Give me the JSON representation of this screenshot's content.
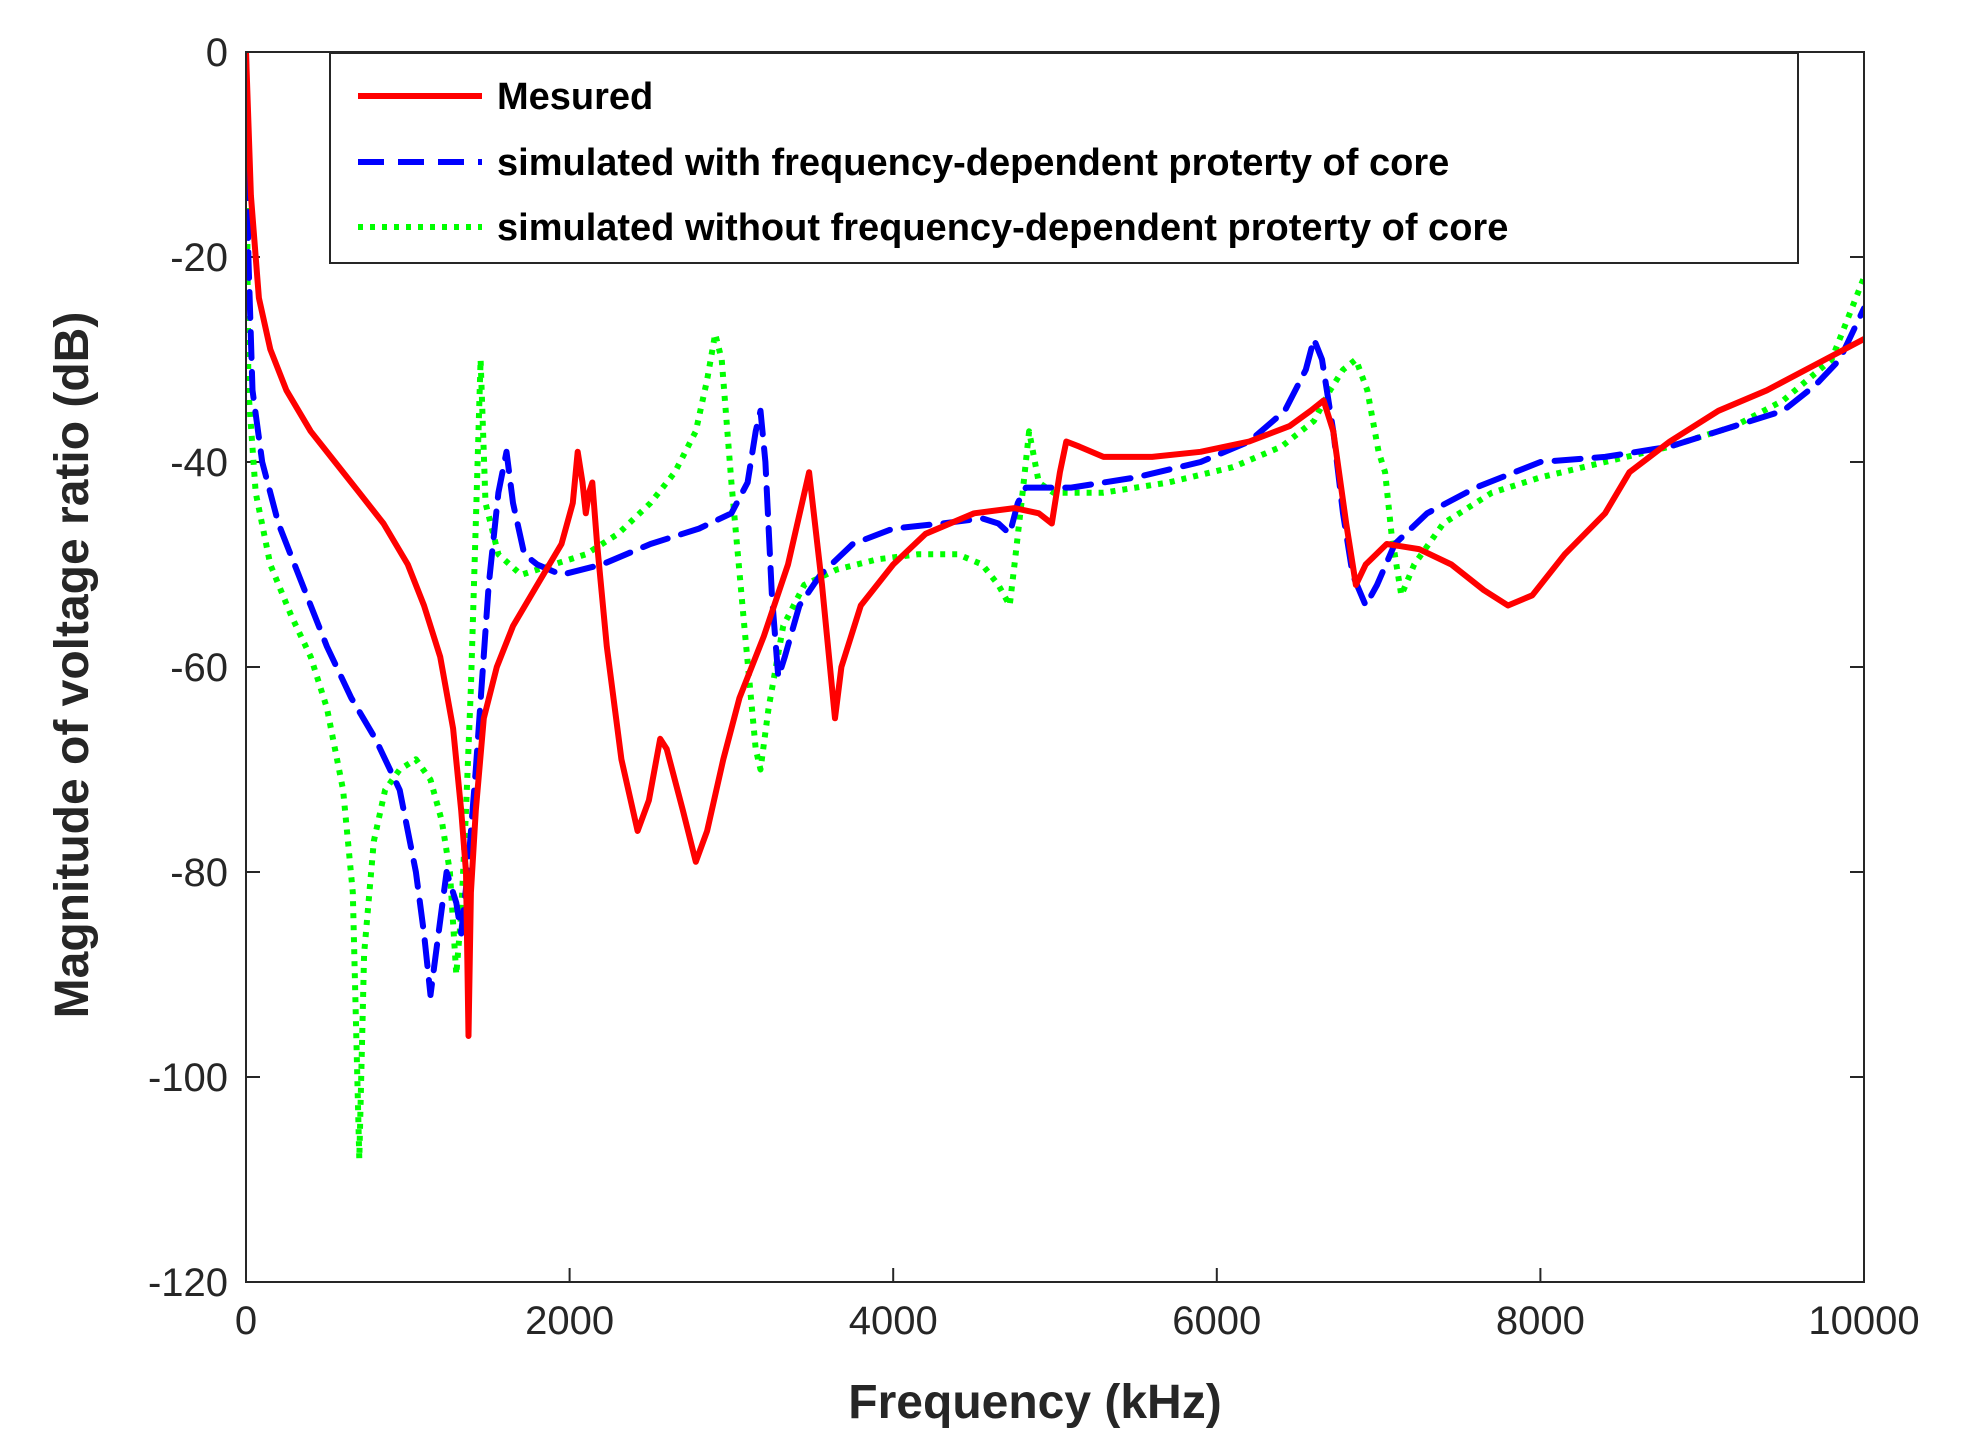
{
  "chart_data": {
    "type": "line",
    "title": "",
    "xlabel": "Frequency (kHz)",
    "ylabel": "Magnitude of voltage ratio (dB)",
    "xlim": [
      0,
      10000
    ],
    "ylim": [
      -120,
      0
    ],
    "xticks": [
      0,
      2000,
      4000,
      6000,
      8000,
      10000
    ],
    "yticks": [
      0,
      -20,
      -40,
      -60,
      -80,
      -100,
      -120
    ],
    "grid": false,
    "legend_position": "top",
    "series": [
      {
        "name": "Mesured",
        "color": "#ff0000",
        "style": "solid",
        "points": [
          [
            0,
            0
          ],
          [
            30,
            -14
          ],
          [
            80,
            -24
          ],
          [
            150,
            -29
          ],
          [
            250,
            -33
          ],
          [
            400,
            -37
          ],
          [
            550,
            -40
          ],
          [
            700,
            -43
          ],
          [
            850,
            -46
          ],
          [
            1000,
            -50
          ],
          [
            1100,
            -54
          ],
          [
            1200,
            -59
          ],
          [
            1280,
            -66
          ],
          [
            1330,
            -74
          ],
          [
            1360,
            -80
          ],
          [
            1375,
            -96
          ],
          [
            1390,
            -82
          ],
          [
            1420,
            -74
          ],
          [
            1470,
            -65
          ],
          [
            1550,
            -60
          ],
          [
            1650,
            -56
          ],
          [
            1800,
            -52
          ],
          [
            1950,
            -48
          ],
          [
            2020,
            -44
          ],
          [
            2050,
            -39
          ],
          [
            2080,
            -42
          ],
          [
            2100,
            -45
          ],
          [
            2120,
            -43
          ],
          [
            2140,
            -42
          ],
          [
            2170,
            -48
          ],
          [
            2230,
            -58
          ],
          [
            2320,
            -69
          ],
          [
            2420,
            -76
          ],
          [
            2490,
            -73
          ],
          [
            2560,
            -67
          ],
          [
            2600,
            -68
          ],
          [
            2700,
            -74
          ],
          [
            2780,
            -79
          ],
          [
            2850,
            -76
          ],
          [
            2950,
            -69
          ],
          [
            3050,
            -63
          ],
          [
            3200,
            -57
          ],
          [
            3350,
            -50
          ],
          [
            3480,
            -41
          ],
          [
            3560,
            -52
          ],
          [
            3640,
            -65
          ],
          [
            3680,
            -60
          ],
          [
            3800,
            -54
          ],
          [
            4000,
            -50
          ],
          [
            4200,
            -47
          ],
          [
            4500,
            -45
          ],
          [
            4750,
            -44.5
          ],
          [
            4900,
            -45
          ],
          [
            4980,
            -46
          ],
          [
            5030,
            -41
          ],
          [
            5070,
            -38
          ],
          [
            5150,
            -38.5
          ],
          [
            5300,
            -39.5
          ],
          [
            5600,
            -39.5
          ],
          [
            5900,
            -39
          ],
          [
            6200,
            -38
          ],
          [
            6450,
            -36.5
          ],
          [
            6580,
            -35
          ],
          [
            6660,
            -34
          ],
          [
            6720,
            -37
          ],
          [
            6800,
            -46
          ],
          [
            6860,
            -52
          ],
          [
            6920,
            -50
          ],
          [
            7050,
            -48
          ],
          [
            7250,
            -48.5
          ],
          [
            7450,
            -50
          ],
          [
            7650,
            -52.5
          ],
          [
            7800,
            -54
          ],
          [
            7950,
            -53
          ],
          [
            8150,
            -49
          ],
          [
            8400,
            -45
          ],
          [
            8550,
            -41
          ],
          [
            8800,
            -38
          ],
          [
            9100,
            -35
          ],
          [
            9400,
            -33
          ],
          [
            9700,
            -30.5
          ],
          [
            10000,
            -28
          ]
        ]
      },
      {
        "name": "simulated with frequency-dependent proterty of core",
        "color": "#0000ff",
        "style": "dashed",
        "points": [
          [
            0,
            0
          ],
          [
            15,
            -20
          ],
          [
            40,
            -33
          ],
          [
            100,
            -40
          ],
          [
            200,
            -46
          ],
          [
            350,
            -52
          ],
          [
            500,
            -58
          ],
          [
            650,
            -63
          ],
          [
            800,
            -67
          ],
          [
            950,
            -72
          ],
          [
            1050,
            -80
          ],
          [
            1100,
            -86
          ],
          [
            1140,
            -92
          ],
          [
            1190,
            -86
          ],
          [
            1240,
            -80
          ],
          [
            1300,
            -83
          ],
          [
            1330,
            -86
          ],
          [
            1370,
            -80
          ],
          [
            1420,
            -70
          ],
          [
            1500,
            -52
          ],
          [
            1560,
            -43
          ],
          [
            1610,
            -39
          ],
          [
            1650,
            -44
          ],
          [
            1720,
            -49
          ],
          [
            1800,
            -50
          ],
          [
            1950,
            -51
          ],
          [
            2200,
            -50
          ],
          [
            2500,
            -48
          ],
          [
            2800,
            -46.5
          ],
          [
            3000,
            -45
          ],
          [
            3100,
            -42
          ],
          [
            3150,
            -37
          ],
          [
            3180,
            -35
          ],
          [
            3210,
            -40
          ],
          [
            3250,
            -53
          ],
          [
            3290,
            -61
          ],
          [
            3330,
            -59
          ],
          [
            3420,
            -54
          ],
          [
            3550,
            -51
          ],
          [
            3750,
            -48
          ],
          [
            4000,
            -46.5
          ],
          [
            4300,
            -46
          ],
          [
            4550,
            -45.5
          ],
          [
            4650,
            -46
          ],
          [
            4720,
            -47
          ],
          [
            4770,
            -44
          ],
          [
            4820,
            -42.5
          ],
          [
            5100,
            -42.5
          ],
          [
            5500,
            -41.5
          ],
          [
            5900,
            -40
          ],
          [
            6200,
            -38
          ],
          [
            6420,
            -35
          ],
          [
            6550,
            -31
          ],
          [
            6600,
            -28
          ],
          [
            6650,
            -30
          ],
          [
            6720,
            -37
          ],
          [
            6780,
            -45
          ],
          [
            6840,
            -51
          ],
          [
            6920,
            -54
          ],
          [
            6990,
            -52
          ],
          [
            7100,
            -48
          ],
          [
            7300,
            -45
          ],
          [
            7600,
            -42.5
          ],
          [
            8000,
            -40
          ],
          [
            8400,
            -39.5
          ],
          [
            8800,
            -38.5
          ],
          [
            9200,
            -36.5
          ],
          [
            9500,
            -35
          ],
          [
            9700,
            -32.5
          ],
          [
            9850,
            -30
          ],
          [
            10000,
            -25
          ]
        ]
      },
      {
        "name": "simulated without frequency-dependent proterty of core",
        "color": "#00ff00",
        "style": "dotted",
        "points": [
          [
            0,
            0
          ],
          [
            15,
            -33
          ],
          [
            60,
            -43
          ],
          [
            150,
            -50
          ],
          [
            280,
            -55
          ],
          [
            400,
            -59
          ],
          [
            500,
            -64
          ],
          [
            600,
            -72
          ],
          [
            660,
            -82
          ],
          [
            700,
            -108
          ],
          [
            730,
            -88
          ],
          [
            790,
            -77
          ],
          [
            860,
            -72
          ],
          [
            950,
            -70
          ],
          [
            1050,
            -69
          ],
          [
            1140,
            -71
          ],
          [
            1210,
            -75
          ],
          [
            1260,
            -80
          ],
          [
            1300,
            -90
          ],
          [
            1330,
            -84
          ],
          [
            1360,
            -74
          ],
          [
            1390,
            -62
          ],
          [
            1420,
            -46
          ],
          [
            1450,
            -30
          ],
          [
            1480,
            -44
          ],
          [
            1560,
            -49
          ],
          [
            1700,
            -51
          ],
          [
            1900,
            -50
          ],
          [
            2100,
            -49
          ],
          [
            2300,
            -47
          ],
          [
            2500,
            -44
          ],
          [
            2650,
            -41
          ],
          [
            2780,
            -37
          ],
          [
            2850,
            -32
          ],
          [
            2900,
            -27.5
          ],
          [
            2940,
            -30
          ],
          [
            3000,
            -42
          ],
          [
            3080,
            -56
          ],
          [
            3150,
            -68
          ],
          [
            3180,
            -70
          ],
          [
            3230,
            -64
          ],
          [
            3320,
            -56
          ],
          [
            3450,
            -52
          ],
          [
            3650,
            -50.5
          ],
          [
            3900,
            -49.5
          ],
          [
            4150,
            -49
          ],
          [
            4400,
            -49
          ],
          [
            4550,
            -50
          ],
          [
            4650,
            -52
          ],
          [
            4720,
            -54
          ],
          [
            4750,
            -50
          ],
          [
            4800,
            -43
          ],
          [
            4840,
            -37
          ],
          [
            4900,
            -42
          ],
          [
            4990,
            -43
          ],
          [
            5300,
            -43
          ],
          [
            5700,
            -42
          ],
          [
            6100,
            -40.5
          ],
          [
            6400,
            -38.5
          ],
          [
            6600,
            -36
          ],
          [
            6700,
            -33
          ],
          [
            6780,
            -31
          ],
          [
            6860,
            -30
          ],
          [
            6930,
            -33
          ],
          [
            7000,
            -39
          ],
          [
            7040,
            -41
          ],
          [
            7080,
            -47
          ],
          [
            7140,
            -53
          ],
          [
            7220,
            -50
          ],
          [
            7400,
            -46
          ],
          [
            7700,
            -43
          ],
          [
            8000,
            -41.5
          ],
          [
            8400,
            -40
          ],
          [
            8800,
            -38.5
          ],
          [
            9200,
            -36.5
          ],
          [
            9500,
            -34
          ],
          [
            9800,
            -30
          ],
          [
            10000,
            -22
          ]
        ]
      }
    ]
  }
}
